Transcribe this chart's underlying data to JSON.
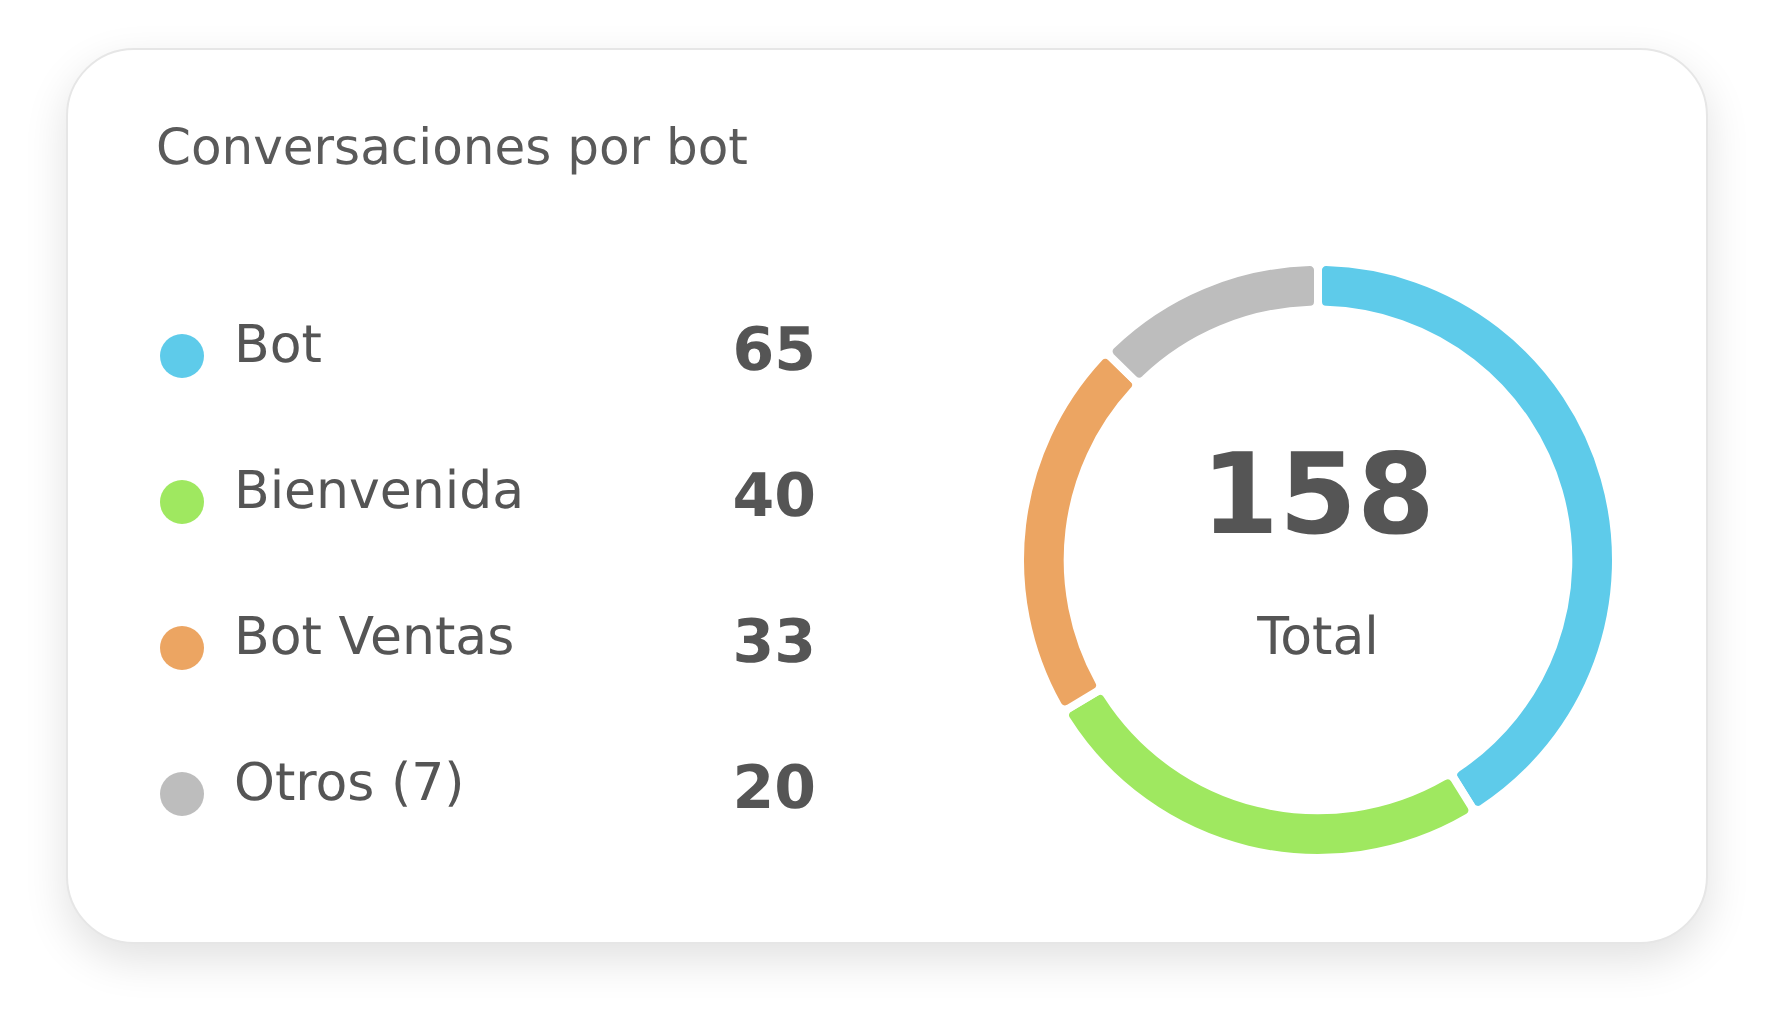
{
  "chart_data": {
    "type": "donut",
    "title": "Conversaciones por bot",
    "categories": [
      "Bot",
      "Bienvenida",
      "Bot Ventas",
      "Otros (7)"
    ],
    "values": [
      65,
      40,
      33,
      20
    ],
    "colors": [
      "#5ecbea",
      "#9fe860",
      "#eca562",
      "#bdbdbd"
    ],
    "annotations": [
      "158",
      "Total"
    ],
    "legend": "left",
    "data_labels": true
  }
}
